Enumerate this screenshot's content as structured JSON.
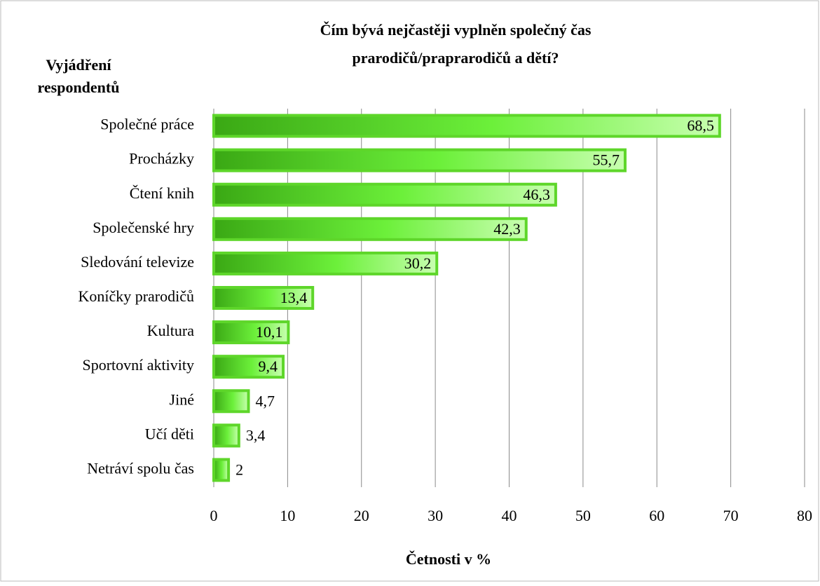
{
  "chart_data": {
    "type": "bar",
    "orientation": "horizontal",
    "title": [
      "Čím bývá nejčastěji vyplněn společný čas",
      "prarodičů/praprarodičů a dětí?"
    ],
    "y_axis_label": [
      "Vyjádření",
      "respondentů"
    ],
    "x_axis_label": "Četnosti v %",
    "categories": [
      "Společné práce",
      "Procházky",
      "Čtení knih",
      "Společenské hry",
      "Sledování televize",
      "Koníčky prarodičů",
      "Kultura",
      "Sportovní aktivity",
      "Jiné",
      "Učí děti",
      "Netráví spolu čas"
    ],
    "values": [
      68.5,
      55.7,
      46.3,
      42.3,
      30.2,
      13.4,
      10.1,
      9.4,
      4.7,
      3.4,
      2
    ],
    "value_labels": [
      "68,5",
      "55,7",
      "46,3",
      "42,3",
      "30,2",
      "13,4",
      "10,1",
      "9,4",
      "4,7",
      "3,4",
      "2"
    ],
    "color": "#5ed62a",
    "xlim": [
      0,
      80
    ],
    "xticks": [
      0,
      10,
      20,
      30,
      40,
      50,
      60,
      70,
      80
    ],
    "grid": true
  }
}
